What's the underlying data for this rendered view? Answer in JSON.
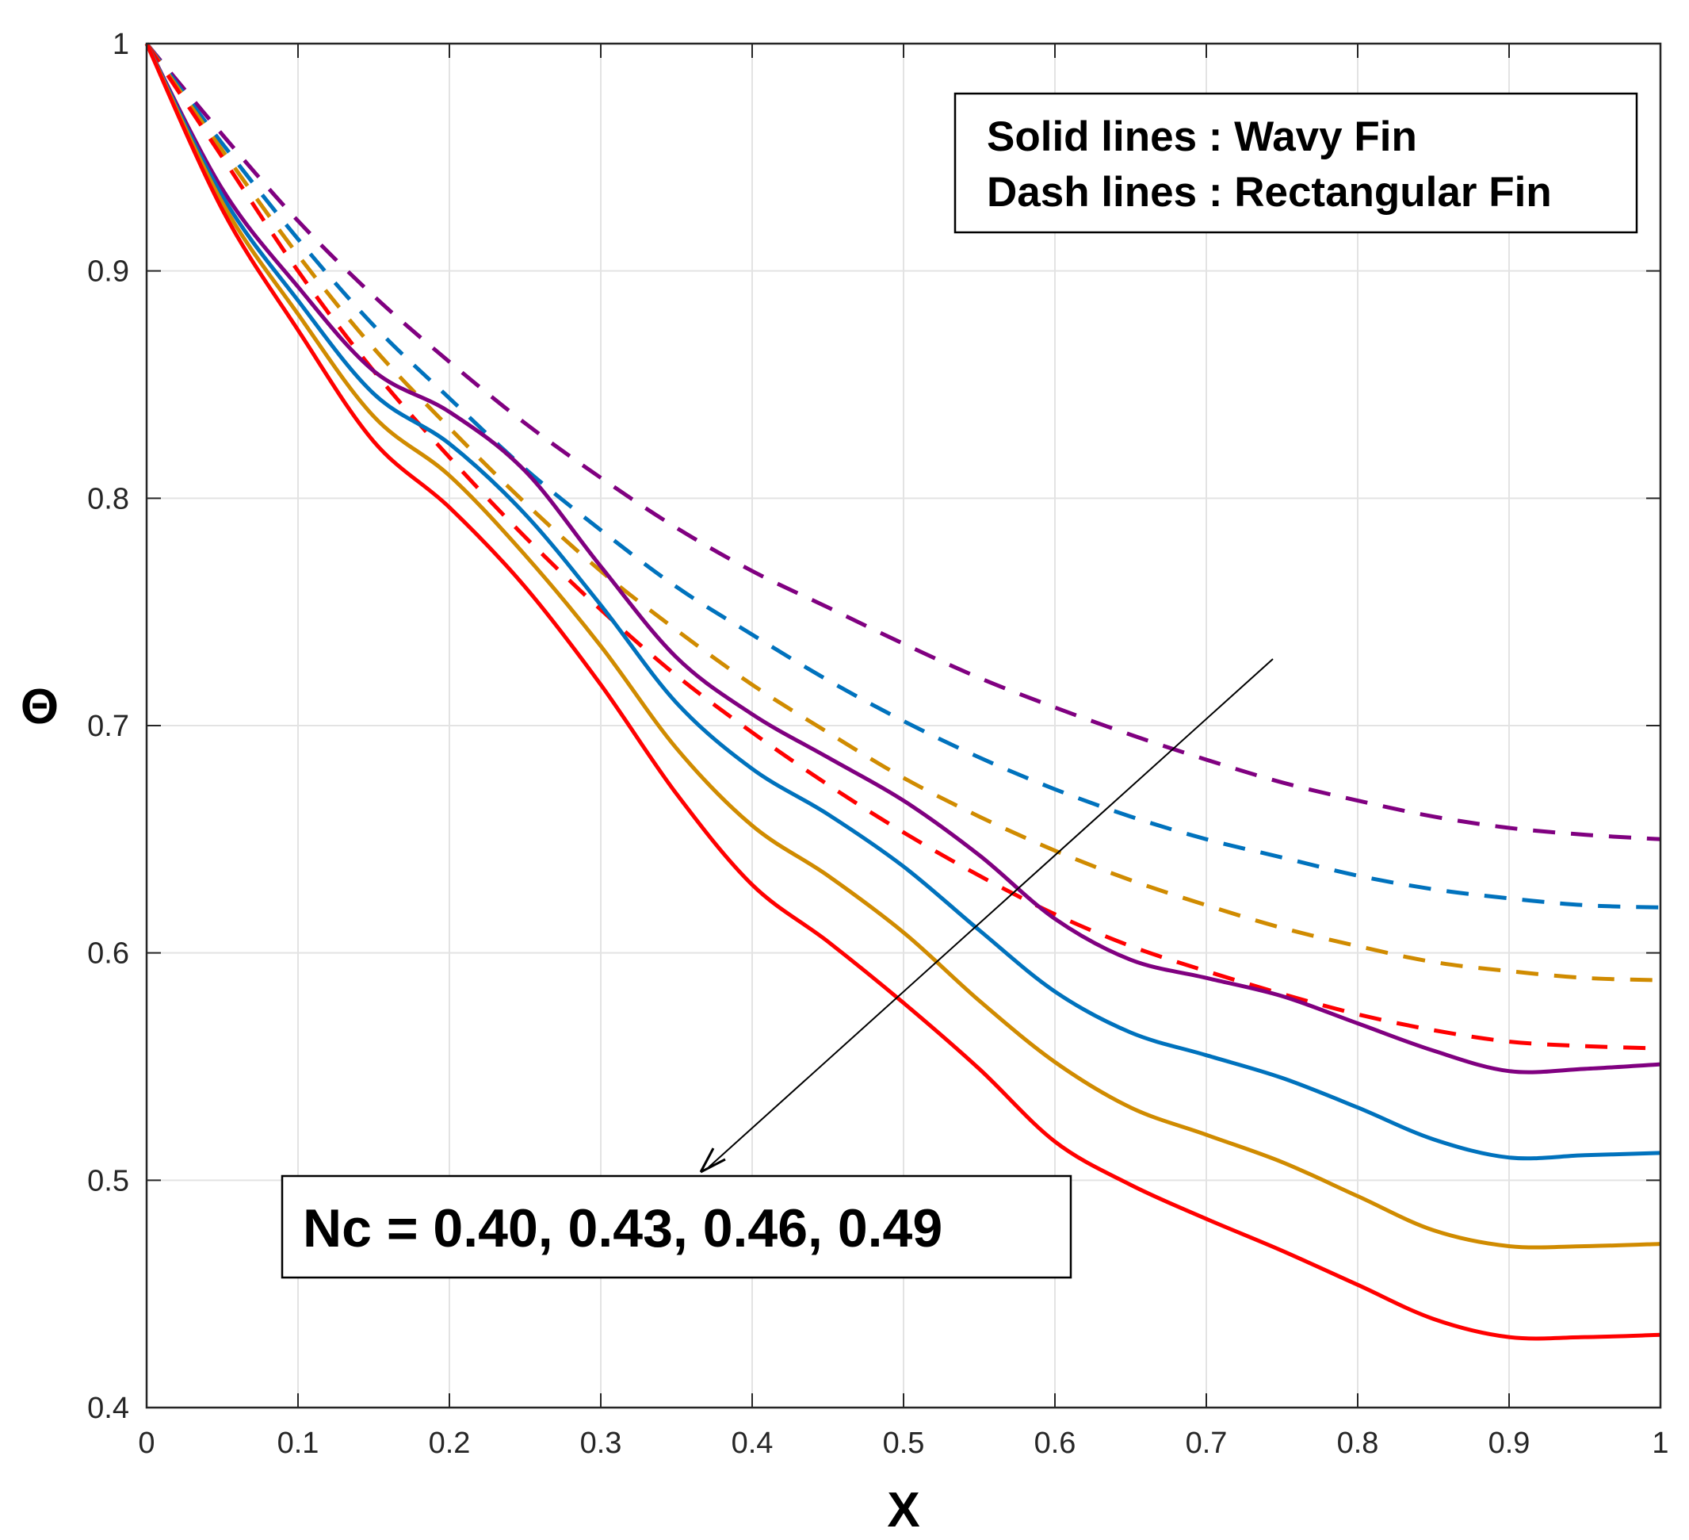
{
  "chart_data": {
    "type": "line",
    "xlabel": "X",
    "ylabel": "Θ",
    "xlim": [
      0,
      1
    ],
    "ylim": [
      0.4,
      1
    ],
    "x_ticks": [
      "0",
      "0.1",
      "0.2",
      "0.3",
      "0.4",
      "0.5",
      "0.6",
      "0.7",
      "0.8",
      "0.9",
      "1"
    ],
    "y_ticks": [
      "0.4",
      "0.5",
      "0.6",
      "0.7",
      "0.8",
      "0.9",
      "1"
    ],
    "grid": true,
    "legend_lines": [
      "Solid lines : Wavy Fin",
      "Dash lines : Rectangular Fin"
    ],
    "legend_position": "top-right",
    "annotation": "Nc = 0.40, 0.43, 0.46, 0.49",
    "x": [
      0,
      0.05,
      0.1,
      0.15,
      0.2,
      0.25,
      0.3,
      0.35,
      0.4,
      0.45,
      0.5,
      0.55,
      0.6,
      0.65,
      0.7,
      0.75,
      0.8,
      0.85,
      0.9,
      0.95,
      1.0
    ],
    "series": [
      {
        "style": "solid",
        "color": "#800080",
        "values": [
          1.0,
          0.936,
          0.893,
          0.856,
          0.838,
          0.812,
          0.77,
          0.73,
          0.705,
          0.686,
          0.667,
          0.643,
          0.615,
          0.597,
          0.589,
          0.581,
          0.569,
          0.557,
          0.548,
          0.549,
          0.551
        ]
      },
      {
        "style": "solid",
        "color": "#0072BD",
        "values": [
          1.0,
          0.933,
          0.887,
          0.846,
          0.824,
          0.793,
          0.753,
          0.71,
          0.681,
          0.661,
          0.638,
          0.61,
          0.583,
          0.565,
          0.555,
          0.545,
          0.532,
          0.518,
          0.51,
          0.511,
          0.512
        ]
      },
      {
        "style": "solid",
        "color": "#D08B00",
        "values": [
          1.0,
          0.93,
          0.881,
          0.836,
          0.81,
          0.775,
          0.735,
          0.69,
          0.656,
          0.634,
          0.609,
          0.579,
          0.552,
          0.532,
          0.52,
          0.508,
          0.493,
          0.478,
          0.471,
          0.471,
          0.472
        ]
      },
      {
        "style": "solid",
        "color": "#FF0000",
        "values": [
          1.0,
          0.927,
          0.874,
          0.825,
          0.796,
          0.761,
          0.718,
          0.67,
          0.63,
          0.605,
          0.578,
          0.549,
          0.517,
          0.498,
          0.483,
          0.469,
          0.454,
          0.439,
          0.431,
          0.431,
          0.432
        ]
      },
      {
        "style": "dash",
        "color": "#800080",
        "values": [
          1.0,
          0.96,
          0.922,
          0.889,
          0.86,
          0.833,
          0.809,
          0.787,
          0.768,
          0.752,
          0.736,
          0.721,
          0.708,
          0.696,
          0.685,
          0.675,
          0.667,
          0.66,
          0.655,
          0.652,
          0.65
        ]
      },
      {
        "style": "dash",
        "color": "#0072BD",
        "values": [
          1.0,
          0.956,
          0.914,
          0.876,
          0.844,
          0.813,
          0.786,
          0.761,
          0.74,
          0.72,
          0.702,
          0.686,
          0.672,
          0.66,
          0.65,
          0.642,
          0.634,
          0.628,
          0.624,
          0.621,
          0.62
        ]
      },
      {
        "style": "dash",
        "color": "#D08B00",
        "values": [
          1.0,
          0.953,
          0.907,
          0.866,
          0.831,
          0.798,
          0.768,
          0.742,
          0.718,
          0.697,
          0.677,
          0.66,
          0.645,
          0.632,
          0.621,
          0.611,
          0.603,
          0.596,
          0.592,
          0.589,
          0.588
        ]
      },
      {
        "style": "dash",
        "color": "#FF0000",
        "values": [
          1.0,
          0.95,
          0.9,
          0.856,
          0.818,
          0.783,
          0.751,
          0.722,
          0.697,
          0.674,
          0.653,
          0.634,
          0.617,
          0.603,
          0.592,
          0.582,
          0.573,
          0.566,
          0.561,
          0.559,
          0.558
        ]
      }
    ]
  }
}
